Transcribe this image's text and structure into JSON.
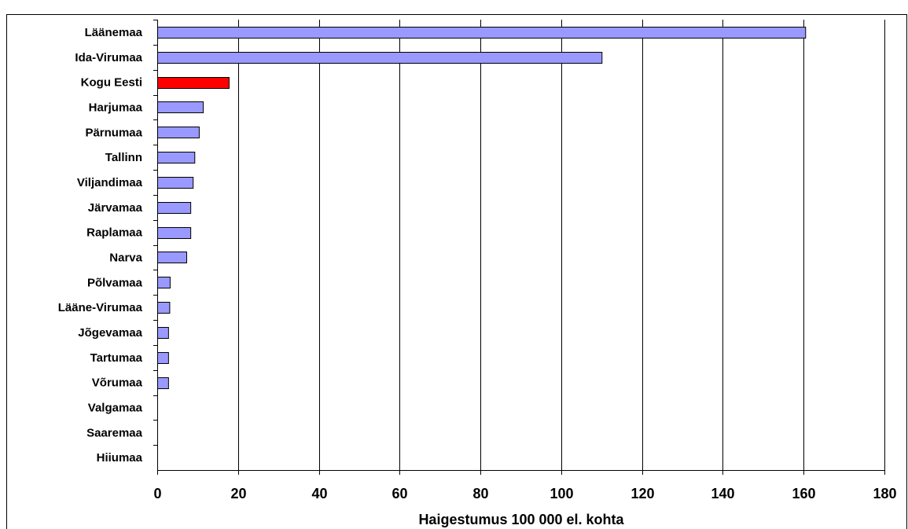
{
  "chart_data": {
    "type": "bar",
    "orientation": "horizontal",
    "title": "",
    "xlabel": "Haigestumus 100 000 el. kohta",
    "ylabel": "",
    "xlim": [
      0,
      180
    ],
    "xticks": [
      0,
      20,
      40,
      60,
      80,
      100,
      120,
      140,
      160,
      180
    ],
    "grid": true,
    "legend": "none",
    "categories": [
      "Läänemaa",
      "Ida-Virumaa",
      "Kogu Eesti",
      "Harjumaa",
      "Pärnumaa",
      "Tallinn",
      "Viljandimaa",
      "Järvamaa",
      "Raplamaa",
      "Narva",
      "Põlvamaa",
      "Lääne-Virumaa",
      "Jõgevamaa",
      "Tartumaa",
      "Võrumaa",
      "Valgamaa",
      "Saaremaa",
      "Hiiumaa"
    ],
    "values": [
      160.4,
      110,
      17.7,
      11.3,
      10.3,
      9.2,
      8.8,
      8.2,
      8.2,
      7.2,
      3.1,
      3.0,
      2.7,
      2.7,
      2.7,
      0,
      0,
      0
    ],
    "highlight": "Kogu Eesti",
    "colors": {
      "bar": "#9999ff",
      "highlight": "#ff0000",
      "outline": "#000000",
      "grid": "#000000"
    }
  }
}
